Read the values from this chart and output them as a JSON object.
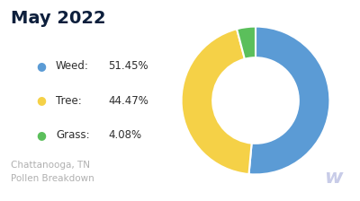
{
  "title": "May 2022",
  "subtitle": "Chattanooga, TN\nPollen Breakdown",
  "slices": [
    51.45,
    44.47,
    4.08
  ],
  "labels": [
    "Weed",
    "Tree",
    "Grass"
  ],
  "percentages": [
    "51.45%",
    "44.47%",
    "4.08%"
  ],
  "colors": [
    "#5B9BD5",
    "#F5D147",
    "#5BBF5B"
  ],
  "background_color": "#ffffff",
  "title_color": "#0d1f3c",
  "legend_label_color": "#2d2d2d",
  "subtitle_color": "#b0b0b0",
  "watermark_color": "#c8cce8",
  "start_angle": 90,
  "donut_width": 0.42
}
